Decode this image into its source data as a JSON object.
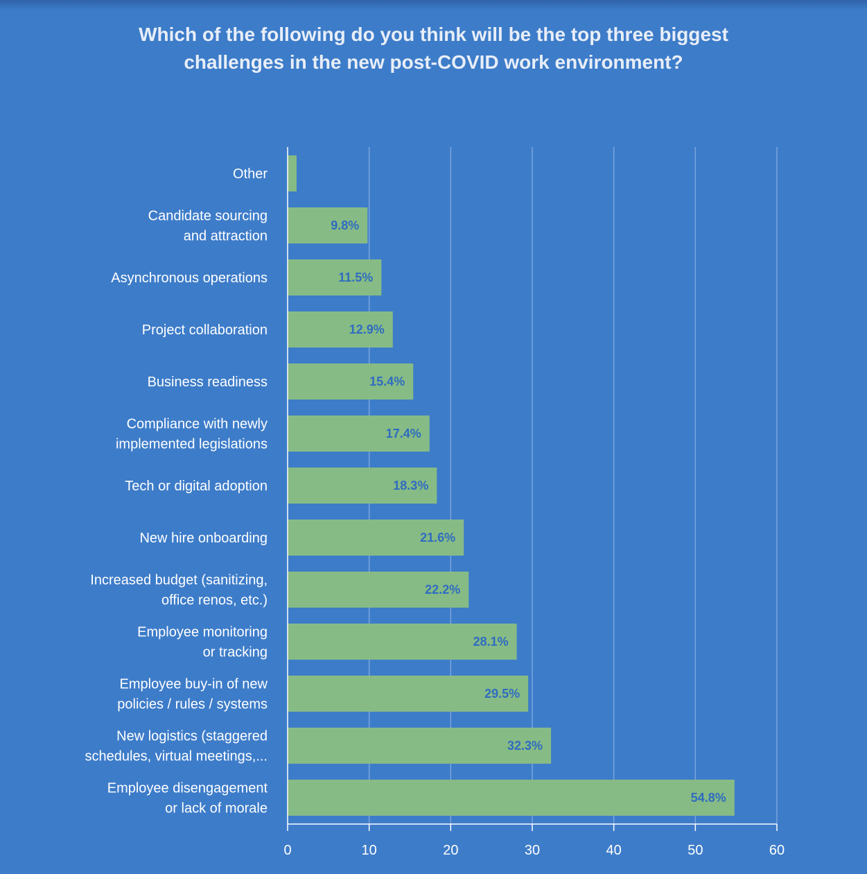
{
  "title_lines": [
    "Which of the following do you think will be the top three biggest",
    "challenges in the new post-COVID work environment?"
  ],
  "chart_data": {
    "type": "bar",
    "orientation": "horizontal",
    "title": "Which of the following do you think will be the top three biggest challenges in the new post-COVID work environment?",
    "categories": [
      [
        "Other"
      ],
      [
        "Candidate sourcing",
        "and attraction"
      ],
      [
        "Asynchronous operations"
      ],
      [
        "Project collaboration"
      ],
      [
        "Business readiness"
      ],
      [
        "Compliance with newly",
        "implemented legislations"
      ],
      [
        "Tech or digital adoption"
      ],
      [
        "New hire onboarding"
      ],
      [
        "Increased budget (sanitizing,",
        "office renos, etc.)"
      ],
      [
        "Employee monitoring",
        "or tracking"
      ],
      [
        "Employee buy-in of new",
        "policies / rules / systems"
      ],
      [
        "New logistics (staggered",
        "schedules, virtual meetings,..."
      ],
      [
        "Employee disengagement",
        "or lack of morale"
      ]
    ],
    "values": [
      1.1,
      9.8,
      11.5,
      12.9,
      15.4,
      17.4,
      18.3,
      21.6,
      22.2,
      28.1,
      29.5,
      32.3,
      54.8
    ],
    "value_labels": [
      "",
      "9.8%",
      "11.5%",
      "12.9%",
      "15.4%",
      "17.4%",
      "18.3%",
      "21.6%",
      "22.2%",
      "28.1%",
      "29.5%",
      "32.3%",
      "54.8%"
    ],
    "xlim": [
      0,
      60
    ],
    "xticks": [
      0,
      10,
      20,
      30,
      40,
      50,
      60
    ],
    "grid": true,
    "legend": "none",
    "colors": {
      "background": "#3d7cc9",
      "bar": "#87bb85",
      "value_label": "#2f6cc0",
      "grid": "#7aa5de",
      "text": "#ffffff"
    }
  }
}
